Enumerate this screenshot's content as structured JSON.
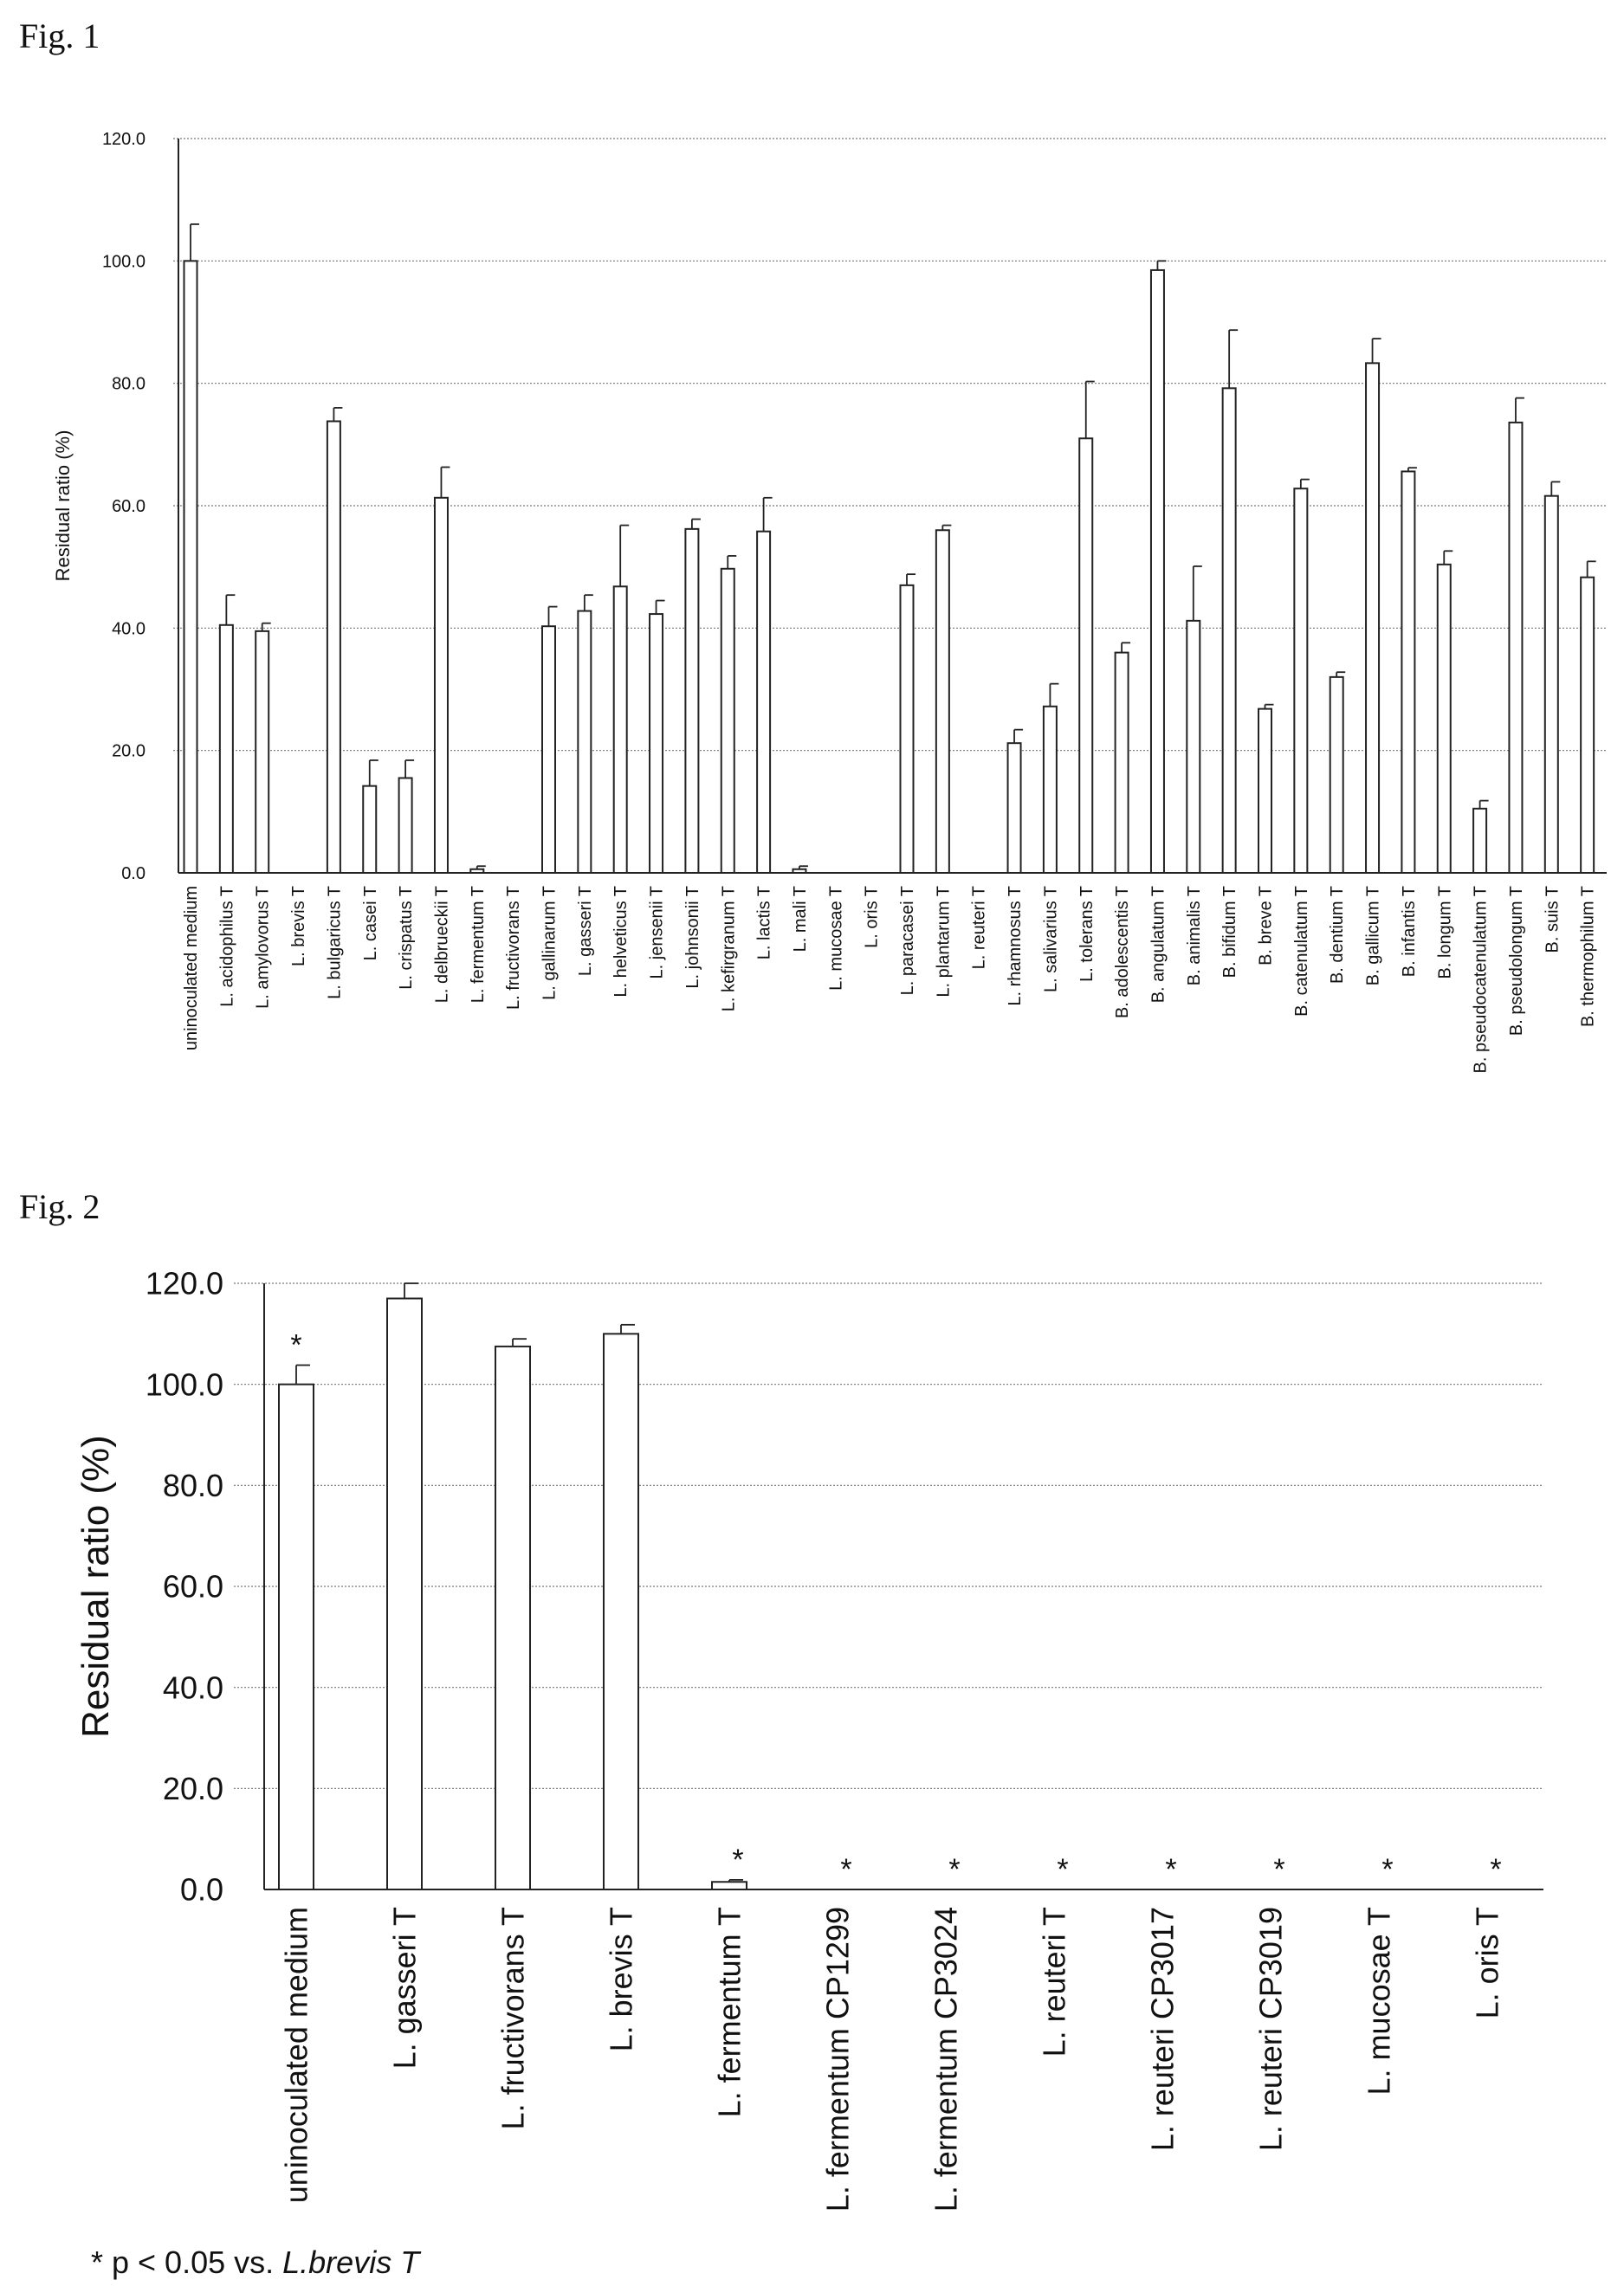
{
  "figure1": {
    "label": "Fig.  1",
    "chart_data": {
      "type": "bar",
      "ylabel": "Residual ratio (%)",
      "ylim": [
        0,
        120
      ],
      "yticks": [
        "0.0",
        "20.0",
        "40.0",
        "60.0",
        "80.0",
        "100.0",
        "120.0"
      ],
      "grid": true,
      "error_bars": true,
      "categories": [
        "uninoculated medium",
        "L. acidophilus T",
        "L. amylovorus T",
        "L. brevis T",
        "L. bulgaricus T",
        "L. casei T",
        "L. crispatus T",
        "L. delbrueckii T",
        "L. fermentum T",
        "L. fructivorans T",
        "L. gallinarum T",
        "L. gasseri T",
        "L. helveticus T",
        "L. jensenii T",
        "L. johnsonii T",
        "L. kefirgranum T",
        "L. lactis T",
        "L. mali T",
        "L. mucosae T",
        "L. oris T",
        "L. paracasei T",
        "L. plantarum T",
        "L. reuteri T",
        "L. rhamnosus T",
        "L. salivarius T",
        "L. tolerans T",
        "B. adolescentis T",
        "B. angulatum T",
        "B. animalis T",
        "B. bifidum T",
        "B. breve T",
        "B. catenulatum T",
        "B. dentium T",
        "B. gallicum T",
        "B. infantis T",
        "B. longum T",
        "B. pseudocatenulatum T",
        "B. pseudolongum T",
        "B. suis T",
        "B. thermophilum T"
      ],
      "values": [
        100.0,
        40.5,
        39.5,
        0.0,
        73.8,
        14.2,
        15.5,
        61.3,
        0.6,
        0.0,
        40.3,
        42.8,
        46.8,
        42.3,
        56.2,
        49.7,
        55.8,
        0.6,
        0.0,
        0.0,
        47.0,
        56.0,
        0.0,
        21.2,
        27.2,
        71.0,
        36.0,
        98.5,
        41.2,
        79.2,
        26.8,
        62.8,
        32.0,
        83.3,
        65.6,
        50.4,
        10.5,
        73.6,
        61.6,
        48.3
      ],
      "errors": [
        6.0,
        4.9,
        1.3,
        0.0,
        2.2,
        4.2,
        2.9,
        5.0,
        0.5,
        0.0,
        3.2,
        2.6,
        10.0,
        2.2,
        1.6,
        2.1,
        5.5,
        0.5,
        0.0,
        0.0,
        1.8,
        0.8,
        0.0,
        2.2,
        3.7,
        9.3,
        1.6,
        1.5,
        8.9,
        9.5,
        0.7,
        1.5,
        0.8,
        4.0,
        0.6,
        2.2,
        1.3,
        4.0,
        2.3,
        2.6
      ]
    }
  },
  "figure2": {
    "label": "Fig.  2",
    "chart_data": {
      "type": "bar",
      "ylabel": "Residual ratio (%)",
      "ylim": [
        0,
        120
      ],
      "yticks": [
        "0.0",
        "20.0",
        "40.0",
        "60.0",
        "80.0",
        "100.0",
        "120.0"
      ],
      "grid": true,
      "error_bars": true,
      "categories": [
        "uninoculated medium",
        "L. gasseri T",
        "L. fructivorans T",
        "L. brevis T",
        "L. fermentum T",
        "L. fermentum CP1299",
        "L. fermentum CP3024",
        "L. reuteri T",
        "L. reuteri CP3017",
        "L. reuteri CP3019",
        "L. mucosae T",
        "L. oris T"
      ],
      "values": [
        100.0,
        117.0,
        107.5,
        110.0,
        1.5,
        0.0,
        0.0,
        0.0,
        0.0,
        0.0,
        0.0,
        0.0
      ],
      "errors": [
        3.8,
        3.0,
        1.5,
        1.8,
        0.4,
        0.0,
        0.0,
        0.0,
        0.0,
        0.0,
        0.0,
        0.0
      ],
      "significance": [
        "*",
        "",
        "",
        "",
        "*",
        "*",
        "*",
        "*",
        "*",
        "*",
        "*",
        "*"
      ]
    },
    "footnote": {
      "prefix": "* p < 0.05 vs. ",
      "italic": "L.brevis T"
    }
  }
}
